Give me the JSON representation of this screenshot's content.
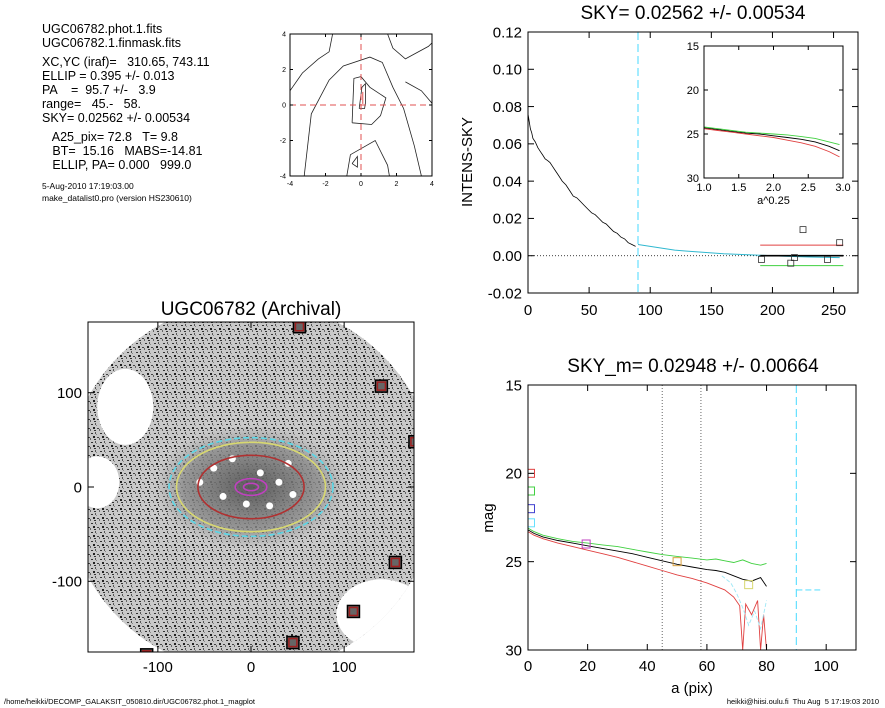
{
  "info": {
    "lines": [
      "UGC06782.phot.1.fits",
      "UGC06782.1.finmask.fits",
      "",
      "XC,YC (iraf)=   310.65, 743.11",
      "ELLIP = 0.395 +/- 0.013",
      "PA    =  95.7 +/-   3.9",
      "range=   45.-   58.",
      "SKY= 0.02562 +/- 0.00534",
      "",
      "   A25_pix= 72.8   T= 9.8",
      "   BT=  15.16   MABS=-14.81",
      "   ELLIP, PA= 0.000   999.0"
    ],
    "date": "5-Aug-2010 17:19:03.00",
    "program": "make_datalist0.pro (version HS230610)"
  },
  "footer": {
    "left": "/home/heikki/DECOMP_GALAKSIT_050810.dir/UGC06782.phot.1_magplot",
    "right": "heikki@hiisi.oulu.fi  Thu Aug  5 17:19:03 2010"
  },
  "chart_data": [
    {
      "id": "contour",
      "type": "contour",
      "xlim": [
        -4,
        4
      ],
      "ylim": [
        -4,
        4
      ],
      "xticks": [
        -4,
        -2,
        0,
        2,
        4
      ],
      "yticks": [
        -4,
        -2,
        0,
        2,
        4
      ],
      "crosshair": {
        "x": 0,
        "y": 0,
        "color": "#e05050"
      },
      "center_marker": [
        0.1,
        0.4
      ],
      "contours": [
        [
          [
            -0.1,
            -0.2
          ],
          [
            0.05,
            1.0
          ],
          [
            0.25,
            1.2
          ],
          [
            0.25,
            0.1
          ],
          [
            0.2,
            -0.2
          ],
          [
            -0.1,
            -0.2
          ]
        ],
        [
          [
            -0.5,
            -1.0
          ],
          [
            -0.4,
            1.5
          ],
          [
            0.0,
            1.6
          ],
          [
            0.5,
            1.0
          ],
          [
            1.4,
            0.4
          ],
          [
            1.1,
            -0.6
          ],
          [
            0.6,
            -1.1
          ],
          [
            -0.5,
            -1.0
          ]
        ],
        [
          [
            -3.2,
            -4
          ],
          [
            -2.8,
            -0.5
          ],
          [
            -1.8,
            1.4
          ],
          [
            -1.0,
            2.2
          ],
          [
            0.5,
            2.7
          ],
          [
            1.2,
            2.4
          ],
          [
            1.8,
            1.0
          ],
          [
            2.4,
            -0.2
          ],
          [
            3.0,
            -2.3
          ],
          [
            3.4,
            -4
          ]
        ],
        [
          [
            -4,
            0.8
          ],
          [
            -3.3,
            1.8
          ],
          [
            -2.4,
            2.6
          ],
          [
            -1.8,
            3.0
          ],
          [
            -1.6,
            4
          ]
        ],
        [
          [
            -0.8,
            -4
          ],
          [
            -0.6,
            -2.8
          ],
          [
            0.8,
            -2.0
          ],
          [
            1.5,
            -3.4
          ],
          [
            1.6,
            -4
          ]
        ],
        [
          [
            -0.5,
            -3.3
          ],
          [
            -0.2,
            -2.9
          ],
          [
            -0.2,
            -3.5
          ],
          [
            -0.5,
            -3.3
          ]
        ],
        [
          [
            1.5,
            4
          ],
          [
            1.8,
            3.2
          ],
          [
            2.5,
            2.6
          ],
          [
            3.8,
            3.3
          ],
          [
            4,
            3.5
          ]
        ],
        [
          [
            2.5,
            1.3
          ],
          [
            3.4,
            0.8
          ],
          [
            4,
            0.1
          ]
        ]
      ]
    },
    {
      "id": "sky",
      "type": "line",
      "title": "SKY= 0.02562 +/- 0.00534",
      "ylabel": "INTENS-SKY",
      "xlim": [
        0,
        270
      ],
      "ylim": [
        -0.02,
        0.12
      ],
      "xticks": [
        0,
        50,
        100,
        150,
        200,
        250
      ],
      "yticks": [
        -0.02,
        0.0,
        0.02,
        0.04,
        0.06,
        0.08,
        0.1,
        0.12
      ],
      "ytick_labels": [
        "-0.02",
        "0.00",
        "0.02",
        "0.04",
        "0.06",
        "0.08",
        "0.10",
        "0.12"
      ],
      "vline": {
        "x": 90,
        "color": "#66e0ff"
      },
      "profile": {
        "x": [
          0,
          1,
          2,
          3,
          4,
          6,
          8,
          10,
          12,
          14,
          16,
          18,
          20,
          22,
          25,
          28,
          31,
          34,
          37,
          40,
          43,
          46,
          49,
          52,
          55,
          58,
          61,
          64,
          67,
          70,
          73,
          76,
          79,
          82,
          85,
          88
        ],
        "y": [
          0.076,
          0.072,
          0.068,
          0.066,
          0.063,
          0.061,
          0.058,
          0.056,
          0.054,
          0.052,
          0.051,
          0.05,
          0.048,
          0.046,
          0.043,
          0.04,
          0.038,
          0.035,
          0.032,
          0.031,
          0.029,
          0.027,
          0.025,
          0.023,
          0.022,
          0.02,
          0.018,
          0.017,
          0.015,
          0.013,
          0.012,
          0.01,
          0.009,
          0.007,
          0.006,
          0.005
        ]
      },
      "sky_profile": {
        "x": [
          90,
          100,
          110,
          120,
          130,
          140,
          150,
          160,
          170,
          180,
          190,
          200,
          210,
          220,
          230,
          240,
          255
        ],
        "y": [
          0.006,
          0.005,
          0.004,
          0.003,
          0.0025,
          0.002,
          0.0015,
          0.001,
          0.0008,
          0.0005,
          0.0003,
          0.0,
          -0.0003,
          -0.0005,
          -0.0007,
          -0.0008,
          -0.001
        ]
      },
      "squares": [
        [
          191,
          -0.002
        ],
        [
          215,
          -0.004
        ],
        [
          218,
          -0.001
        ],
        [
          225,
          0.014
        ],
        [
          245,
          -0.002
        ],
        [
          255,
          0.007
        ]
      ],
      "hlines": [
        {
          "x": [
            190,
            258
          ],
          "y": 0.0057,
          "color": "#e04040"
        },
        {
          "x": [
            190,
            258
          ],
          "y": 0.0,
          "color": "#000000"
        },
        {
          "x": [
            190,
            258
          ],
          "y": -0.0053,
          "color": "#40d040"
        }
      ],
      "inset": {
        "xlabel": "a^0.25",
        "xlim": [
          1.0,
          3.0
        ],
        "ylim": [
          15,
          30
        ],
        "xticks": [
          1.0,
          1.5,
          2.0,
          2.5,
          3.0
        ],
        "xtick_labels": [
          "1.0",
          "1.5",
          "2.0",
          "2.5",
          "3.0"
        ],
        "yticks": [
          15,
          20,
          25,
          30
        ],
        "series": [
          {
            "color": "#000000",
            "x": [
              1.0,
              1.2,
              1.4,
              1.6,
              1.8,
              2.0,
              2.2,
              2.4,
              2.6,
              2.8,
              2.95
            ],
            "y": [
              24.3,
              24.5,
              24.7,
              24.9,
              25.0,
              25.2,
              25.4,
              25.6,
              25.9,
              26.4,
              26.9
            ]
          },
          {
            "color": "#40d040",
            "x": [
              1.0,
              1.2,
              1.4,
              1.6,
              1.8,
              2.0,
              2.2,
              2.4,
              2.6,
              2.8,
              2.95
            ],
            "y": [
              24.2,
              24.4,
              24.6,
              24.8,
              24.9,
              25.0,
              25.1,
              25.3,
              25.5,
              25.9,
              26.2
            ]
          },
          {
            "color": "#e04040",
            "x": [
              1.0,
              1.2,
              1.4,
              1.6,
              1.8,
              2.0,
              2.2,
              2.4,
              2.6,
              2.8,
              2.95
            ],
            "y": [
              24.4,
              24.6,
              24.8,
              25.0,
              25.2,
              25.4,
              25.7,
              26.0,
              26.4,
              27.0,
              27.6
            ]
          }
        ]
      }
    },
    {
      "id": "image",
      "type": "image",
      "title": "UGC06782 (Archival)",
      "xlim": [
        -175,
        175
      ],
      "ylim": [
        -175,
        175
      ],
      "xticks": [
        -100,
        0,
        100
      ],
      "yticks": [
        -100,
        0,
        100
      ],
      "xtick_labels": [
        "-100",
        "0",
        "100"
      ],
      "ytick_labels": [
        "-100",
        "0",
        "100"
      ],
      "ellipses": [
        {
          "rx": 88,
          "ry": 53,
          "color": "#5ad8e8",
          "dash": true
        },
        {
          "rx": 80,
          "ry": 48,
          "color": "#d8d870",
          "dash": false
        },
        {
          "rx": 57,
          "ry": 34,
          "color": "#b03030",
          "dash": false
        },
        {
          "rx": 17,
          "ry": 9,
          "color": "#c040c0",
          "dash": false
        },
        {
          "rx": 8,
          "ry": 4,
          "color": "#c040c0",
          "dash": false
        }
      ],
      "masked_stars": [
        [
          52,
          170
        ],
        [
          140,
          107
        ],
        [
          176,
          48
        ],
        [
          155,
          -80
        ],
        [
          110,
          -132
        ],
        [
          45,
          -165
        ],
        [
          -112,
          -178
        ]
      ],
      "voids": [
        {
          "cx": -135,
          "cy": 85,
          "rx": 28,
          "ry": 38
        },
        {
          "cx": -165,
          "cy": 5,
          "rx": 22,
          "ry": 26
        },
        {
          "cx": 140,
          "cy": -135,
          "rx": 45,
          "ry": 35
        }
      ]
    },
    {
      "id": "mag",
      "type": "line",
      "title": "SKY_m=  0.02948 +/- 0.00664",
      "xlabel": "a (pix)",
      "ylabel": "mag",
      "xlim": [
        0,
        110
      ],
      "ylim": [
        30,
        15
      ],
      "xticks": [
        0,
        20,
        40,
        60,
        80,
        100
      ],
      "yticks": [
        15,
        20,
        25,
        30
      ],
      "vlines": [
        {
          "x": 45,
          "color": "#404040",
          "dotted": true
        },
        {
          "x": 58,
          "color": "#404040",
          "dotted": true
        },
        {
          "x": 90,
          "color": "#66e0ff",
          "dotted": false
        }
      ],
      "hsegment": {
        "x": [
          90,
          98
        ],
        "y": 26.6,
        "color": "#66e0ff"
      },
      "left_squares": [
        {
          "x": 0.5,
          "y": 20.0,
          "color": "#e04040"
        },
        {
          "x": 0.5,
          "y": 21.0,
          "color": "#40d040"
        },
        {
          "x": 0.5,
          "y": 22.0,
          "color": "#4040d0"
        },
        {
          "x": 0.5,
          "y": 22.8,
          "color": "#66e0ff"
        }
      ],
      "markers": [
        {
          "x": 19.5,
          "y": 24.0,
          "color": "#c040c0"
        },
        {
          "x": 50,
          "y": 25.0,
          "color": "#d8a040"
        },
        {
          "x": 74,
          "y": 26.3,
          "color": "#d8d870"
        }
      ],
      "series": [
        {
          "name": "",
          "color": "#40d040",
          "x": [
            0,
            2,
            5,
            10,
            15,
            20,
            25,
            30,
            35,
            40,
            45,
            50,
            55,
            60,
            63,
            66,
            69,
            72,
            75,
            78,
            80
          ],
          "y": [
            23.1,
            23.3,
            23.5,
            23.7,
            23.85,
            23.95,
            24.05,
            24.15,
            24.3,
            24.45,
            24.6,
            24.7,
            24.8,
            24.9,
            24.85,
            24.95,
            25.05,
            24.9,
            25.1,
            25.2,
            25.1
          ]
        },
        {
          "name": "",
          "color": "#000000",
          "x": [
            0,
            2,
            5,
            10,
            15,
            20,
            25,
            30,
            35,
            40,
            45,
            50,
            55,
            60,
            63,
            66,
            69,
            72,
            75,
            78,
            80
          ],
          "y": [
            23.2,
            23.4,
            23.6,
            23.8,
            23.95,
            24.1,
            24.25,
            24.4,
            24.55,
            24.75,
            24.95,
            25.15,
            25.3,
            25.45,
            25.5,
            25.6,
            25.8,
            26.0,
            26.1,
            25.9,
            26.4
          ]
        },
        {
          "name": "",
          "color": "#e04040",
          "x": [
            0,
            2,
            5,
            10,
            15,
            20,
            25,
            30,
            35,
            40,
            45,
            50,
            55,
            60,
            63,
            66,
            69,
            71,
            72,
            73,
            75,
            77,
            78,
            79,
            80
          ],
          "y": [
            23.3,
            23.5,
            23.7,
            23.95,
            24.15,
            24.35,
            24.55,
            24.75,
            25.0,
            25.25,
            25.5,
            25.75,
            25.95,
            26.2,
            26.4,
            26.6,
            27.0,
            27.5,
            30.0,
            27.4,
            28.0,
            27.2,
            30.0,
            28.0,
            30.0
          ]
        },
        {
          "name": "",
          "color": "#9ee8f6",
          "dash": true,
          "x": [
            65,
            68,
            70,
            72,
            74,
            76,
            78,
            80
          ],
          "y": [
            25.8,
            26.2,
            26.8,
            27.6,
            28.6,
            27.8,
            28.8,
            27.2
          ]
        }
      ]
    }
  ]
}
